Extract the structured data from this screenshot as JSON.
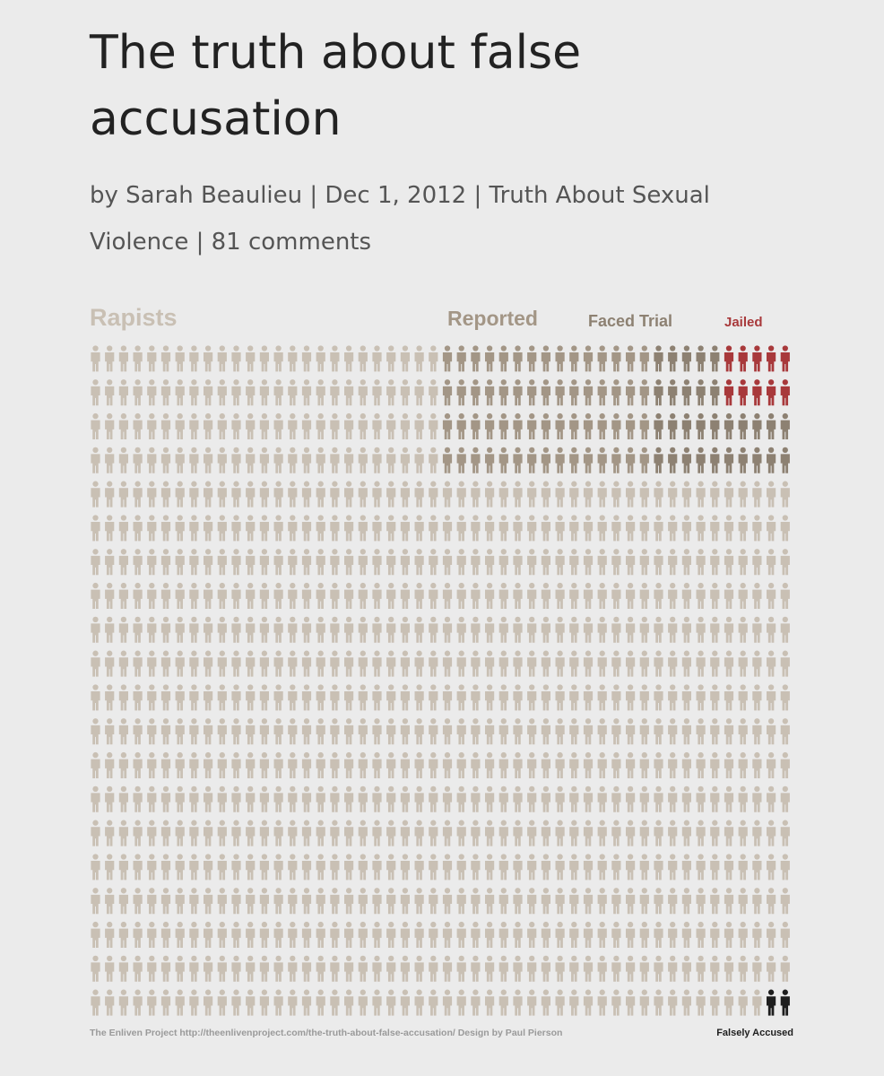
{
  "article": {
    "title": "The truth about false accusation",
    "byline": "by Sarah Beaulieu | Dec 1, 2012 | Truth About Sexual Violence | 81 comments"
  },
  "infographic": {
    "groups": [
      {
        "label": "Rapists",
        "count": 1000,
        "color": "#c9c0b4"
      },
      {
        "label": "Reported",
        "count": 100,
        "color": "#a39686"
      },
      {
        "label": "Faced Trial",
        "count": 40,
        "color": "#8d8172"
      },
      {
        "label": "Jailed",
        "count": 10,
        "color": "#a8393b"
      }
    ],
    "falsely_accused": {
      "label": "Falsely Accused",
      "count": 2,
      "color": "#1e1e1e"
    },
    "credit": "The Enliven Project http://theenlivenproject.com/the-truth-about-false-accusation/ Design by Paul Pierson"
  }
}
